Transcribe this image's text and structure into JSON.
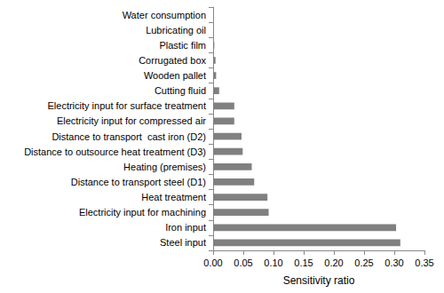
{
  "chart_data": {
    "type": "bar",
    "orientation": "horizontal",
    "x_label": "Sensitivity ratio",
    "categories": [
      "Steel input",
      "Iron input",
      "Electricity input for machining",
      "Heat treatment",
      "Distance to transport steel (D1)",
      "Heating (premises)",
      "Distance to outsource heat treatment (D3)",
      "Distance to transport  cast iron (D2)",
      "Electricity input for compressed air",
      "Electricity input for surface treatment",
      "Cutting fluid",
      "Wooden pallet",
      "Corrugated box",
      "Plastic film",
      "Lubricating oil",
      "Water consumption"
    ],
    "values": [
      0.31,
      0.303,
      0.092,
      0.09,
      0.068,
      0.064,
      0.049,
      0.047,
      0.035,
      0.035,
      0.01,
      0.005,
      0.004,
      0.002,
      0.001,
      0.0
    ],
    "color": "#808080",
    "xlim": [
      0,
      0.35
    ],
    "xticks": [
      {
        "value": 0,
        "label": "0.00"
      },
      {
        "value": 0.05,
        "label": "0.05"
      },
      {
        "value": 0.1,
        "label": "0.10"
      },
      {
        "value": 0.15,
        "label": "0.15"
      },
      {
        "value": 0.2,
        "label": "0.20"
      },
      {
        "value": 0.25,
        "label": "0.25"
      },
      {
        "value": 0.3,
        "label": "0.30"
      },
      {
        "value": 0.35,
        "label": "0.35"
      }
    ],
    "grid": false
  }
}
